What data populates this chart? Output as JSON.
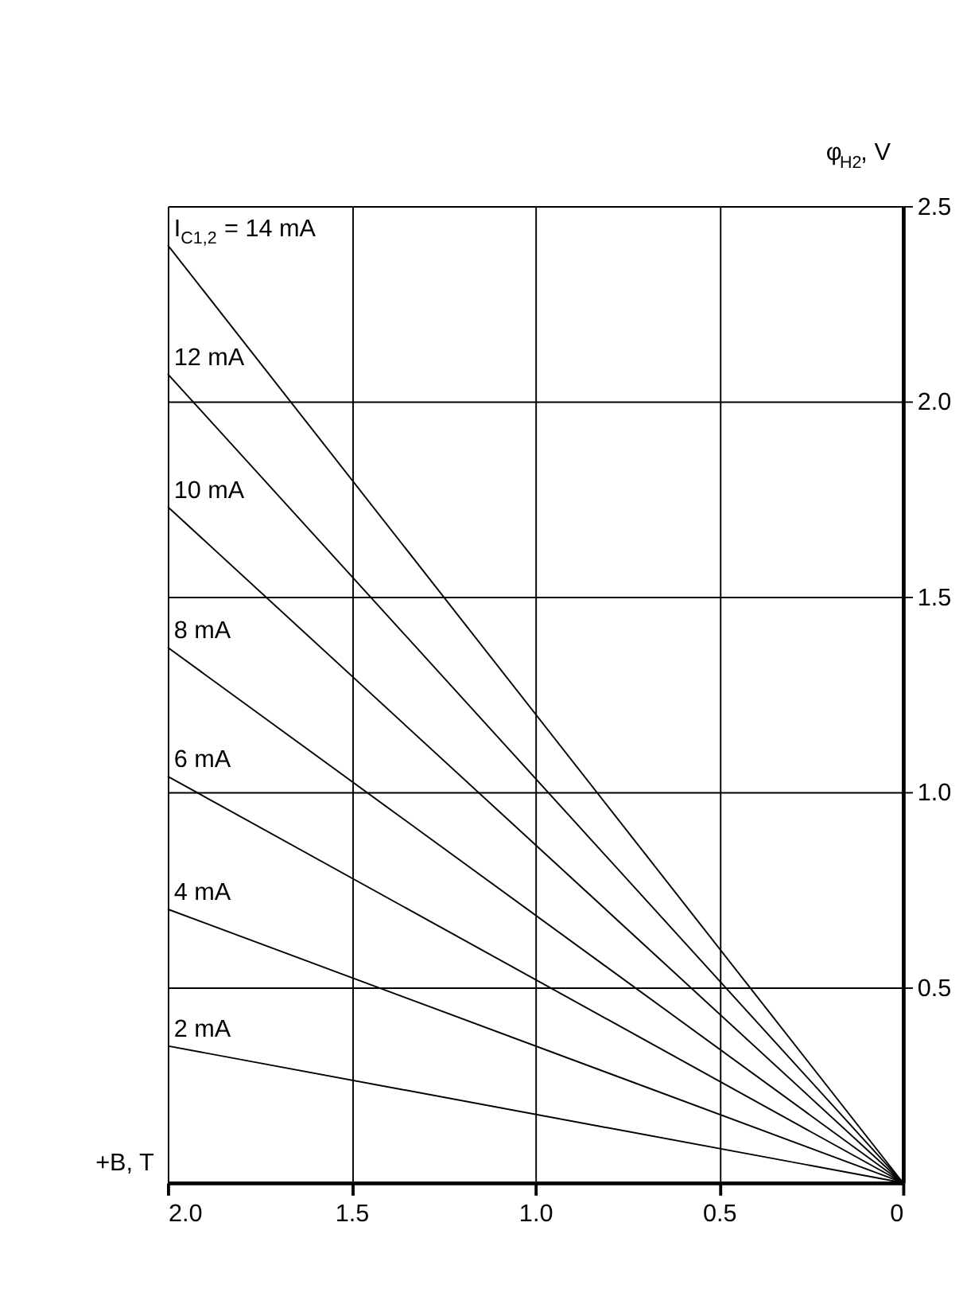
{
  "chart_data": {
    "type": "line",
    "xlabel": "+B, T",
    "ylabel": "φ$_{H2}$, V",
    "x": [
      2.0,
      0.0
    ],
    "xlim": [
      2.0,
      0.0
    ],
    "xticks": [
      {
        "value": 2.0,
        "label": "2.0"
      },
      1.5,
      {
        "value": 1.0,
        "label": "1.0"
      },
      0.5,
      0
    ],
    "ylim": [
      0,
      2.5
    ],
    "yticks": [
      0.5,
      {
        "value": 1.0,
        "label": "1.0"
      },
      1.5,
      {
        "value": 2.0,
        "label": "2.0"
      },
      2.5
    ],
    "grid": true,
    "legend": false,
    "marker": "none",
    "line_style": "solid",
    "series": [
      {
        "name": "I$_{C1,2}$ = 14 mA",
        "color": "#000000",
        "values": [
          2.4,
          0
        ]
      },
      {
        "name": "12 mA",
        "color": "#000000",
        "values": [
          2.07,
          0
        ]
      },
      {
        "name": "10 mA",
        "color": "#000000",
        "values": [
          1.73,
          0
        ]
      },
      {
        "name": "8 mA",
        "color": "#000000",
        "values": [
          1.37,
          0
        ]
      },
      {
        "name": "6 mA",
        "color": "#000000",
        "values": [
          1.04,
          0
        ]
      },
      {
        "name": "4 mA",
        "color": "#000000",
        "values": [
          0.7,
          0
        ]
      },
      {
        "name": "2 mA",
        "color": "#000000",
        "values": [
          0.35,
          0
        ]
      }
    ]
  }
}
